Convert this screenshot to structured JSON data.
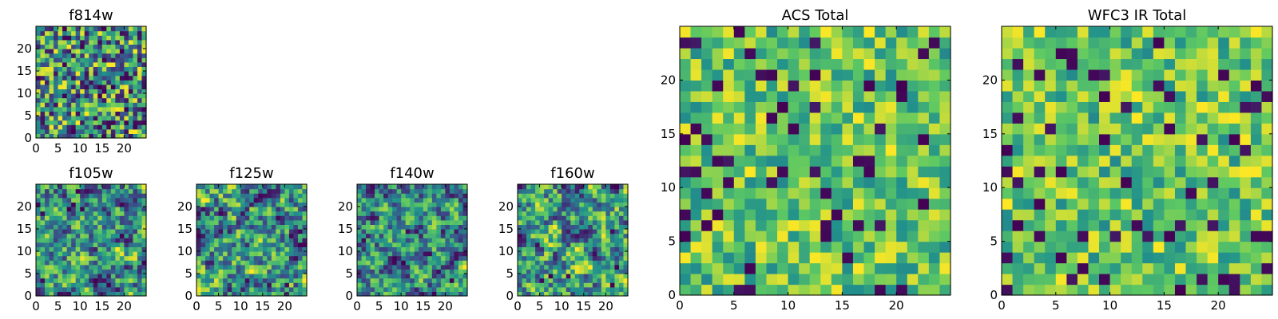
{
  "chart_data": [
    {
      "type": "heatmap",
      "title": "f814w",
      "size": 25,
      "xticks": [
        0,
        5,
        10,
        15,
        20
      ],
      "yticks": [
        0,
        5,
        10,
        15,
        20
      ],
      "xlim": [
        0,
        25
      ],
      "ylim": [
        0,
        25
      ],
      "colormap": "viridis",
      "texture": "noisy"
    },
    {
      "type": "heatmap",
      "title": "f105w",
      "size": 25,
      "xticks": [
        0,
        5,
        10,
        15,
        20
      ],
      "yticks": [
        0,
        5,
        10,
        15,
        20
      ],
      "xlim": [
        0,
        25
      ],
      "ylim": [
        0,
        25
      ],
      "colormap": "viridis",
      "texture": "smooth"
    },
    {
      "type": "heatmap",
      "title": "f125w",
      "size": 25,
      "xticks": [
        0,
        5,
        10,
        15,
        20
      ],
      "yticks": [
        0,
        5,
        10,
        15,
        20
      ],
      "xlim": [
        0,
        25
      ],
      "ylim": [
        0,
        25
      ],
      "colormap": "viridis",
      "texture": "smooth"
    },
    {
      "type": "heatmap",
      "title": "f140w",
      "size": 25,
      "xticks": [
        0,
        5,
        10,
        15,
        20
      ],
      "yticks": [
        0,
        5,
        10,
        15,
        20
      ],
      "xlim": [
        0,
        25
      ],
      "ylim": [
        0,
        25
      ],
      "colormap": "viridis",
      "texture": "smooth"
    },
    {
      "type": "heatmap",
      "title": "f160w",
      "size": 25,
      "xticks": [
        0,
        5,
        10,
        15,
        20
      ],
      "yticks": [
        0,
        5,
        10,
        15,
        20
      ],
      "xlim": [
        0,
        25
      ],
      "ylim": [
        0,
        25
      ],
      "colormap": "viridis",
      "texture": "smooth"
    },
    {
      "type": "heatmap",
      "title": "ACS Total",
      "size": 25,
      "xticks": [
        0,
        5,
        10,
        15,
        20
      ],
      "yticks": [
        0,
        5,
        10,
        15,
        20
      ],
      "xlim": [
        0,
        25
      ],
      "ylim": [
        0,
        25
      ],
      "colormap": "viridis",
      "texture": "bright"
    },
    {
      "type": "heatmap",
      "title": "WFC3 IR Total",
      "size": 25,
      "xticks": [
        0,
        5,
        10,
        15,
        20
      ],
      "yticks": [
        0,
        5,
        10,
        15,
        20
      ],
      "xlim": [
        0,
        25
      ],
      "ylim": [
        0,
        25
      ],
      "colormap": "viridis",
      "texture": "bright"
    }
  ],
  "colors": {
    "colormap_stops": [
      "#440154",
      "#3b528b",
      "#21918c",
      "#5ec962",
      "#fde725"
    ],
    "axis": "#000000",
    "background": "#ffffff"
  }
}
